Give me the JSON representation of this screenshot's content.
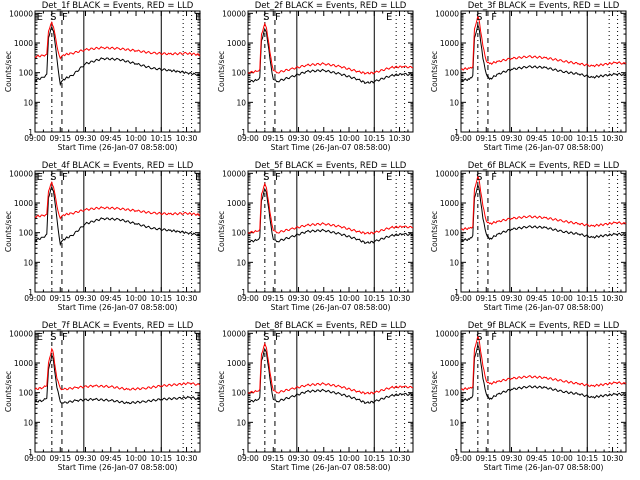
{
  "colors": {
    "events": "#000000",
    "lld": "#ff0000",
    "axis": "#000000",
    "background": "#ffffff"
  },
  "chart_data": [
    {
      "type": "line",
      "title": "Det_1f  BLACK = Events, RED = LLD",
      "ylabel": "Counts/sec",
      "xlabel": "Start Time (26-Jan-07 08:58:00)",
      "profile": 0,
      "markers": [
        {
          "label": "E",
          "x": "09:01"
        },
        {
          "label": "S",
          "x": "09:09"
        },
        {
          "label": "F",
          "x": "09:16"
        },
        {
          "label": "E",
          "x": "10:35"
        }
      ]
    },
    {
      "type": "line",
      "title": "Det_2f  BLACK = Events, RED = LLD",
      "ylabel": "Counts/sec",
      "xlabel": "Start Time (26-Jan-07 08:58:00)",
      "profile": 1,
      "markers": [
        {
          "label": "S",
          "x": "09:09"
        },
        {
          "label": "F",
          "x": "09:16"
        },
        {
          "label": "E",
          "x": "10:22"
        }
      ]
    },
    {
      "type": "line",
      "title": "Det_3f  BLACK = Events, RED = LLD",
      "ylabel": "Counts/sec",
      "xlabel": "Start Time (26-Jan-07 08:58:00)",
      "profile": 2,
      "markers": [
        {
          "label": "S",
          "x": "09:09"
        },
        {
          "label": "F",
          "x": "09:18"
        }
      ]
    },
    {
      "type": "line",
      "title": "Det_4f  BLACK = Events, RED = LLD",
      "ylabel": "Counts/sec",
      "xlabel": "Start Time (26-Jan-07 08:58:00)",
      "profile": 0,
      "markers": [
        {
          "label": "E",
          "x": "09:01"
        },
        {
          "label": "S",
          "x": "09:09"
        },
        {
          "label": "F",
          "x": "09:16"
        },
        {
          "label": "E",
          "x": "10:35"
        }
      ]
    },
    {
      "type": "line",
      "title": "Det_5f  BLACK = Events, RED = LLD",
      "ylabel": "Counts/sec",
      "xlabel": "Start Time (26-Jan-07 08:58:00)",
      "profile": 1,
      "markers": [
        {
          "label": "S",
          "x": "09:09"
        },
        {
          "label": "F",
          "x": "09:16"
        },
        {
          "label": "E",
          "x": "10:22"
        }
      ]
    },
    {
      "type": "line",
      "title": "Det_6f  BLACK = Events, RED = LLD",
      "ylabel": "Counts/sec",
      "xlabel": "Start Time (26-Jan-07 08:58:00)",
      "profile": 2,
      "markers": [
        {
          "label": "S",
          "x": "09:09"
        },
        {
          "label": "F",
          "x": "09:18"
        }
      ]
    },
    {
      "type": "line",
      "title": "Det_7f  BLACK = Events, RED = LLD",
      "ylabel": "Counts/sec",
      "xlabel": "Start Time (26-Jan-07 08:58:00)",
      "profile": 3,
      "markers": [
        {
          "label": "E",
          "x": "09:01"
        },
        {
          "label": "S",
          "x": "09:09"
        },
        {
          "label": "F",
          "x": "09:16"
        },
        {
          "label": "E",
          "x": "10:35"
        }
      ]
    },
    {
      "type": "line",
      "title": "Det_8f  BLACK = Events, RED = LLD",
      "ylabel": "Counts/sec",
      "xlabel": "Start Time (26-Jan-07 08:58:00)",
      "profile": 1,
      "markers": [
        {
          "label": "S",
          "x": "09:09"
        },
        {
          "label": "F",
          "x": "09:16"
        },
        {
          "label": "E",
          "x": "10:22"
        }
      ]
    },
    {
      "type": "line",
      "title": "Det_9f  BLACK = Events, RED = LLD",
      "ylabel": "Counts/sec",
      "xlabel": "Start Time (26-Jan-07 08:58:00)",
      "profile": 2,
      "markers": [
        {
          "label": "S",
          "x": "09:09"
        },
        {
          "label": "F",
          "x": "09:18"
        }
      ]
    }
  ],
  "axes": {
    "x_ticks": [
      "09:00",
      "09:15",
      "09:30",
      "09:45",
      "10:00",
      "10:15",
      "10:30"
    ],
    "x_range": [
      "09:00",
      "10:38"
    ],
    "y_ticks": [
      "1",
      "10",
      "100",
      "1000",
      "10000"
    ],
    "y_range": [
      1,
      12000
    ],
    "y_scale": "log"
  },
  "profiles": [
    {
      "events": [
        [
          0,
          55
        ],
        [
          5,
          70
        ],
        [
          7,
          90
        ],
        [
          8,
          1500
        ],
        [
          10,
          3500
        ],
        [
          11,
          2500
        ],
        [
          13,
          300
        ],
        [
          15,
          40
        ],
        [
          17,
          60
        ],
        [
          22,
          80
        ],
        [
          30,
          200
        ],
        [
          40,
          300
        ],
        [
          50,
          280
        ],
        [
          60,
          200
        ],
        [
          70,
          140
        ],
        [
          80,
          120
        ],
        [
          85,
          110
        ],
        [
          90,
          100
        ],
        [
          95,
          90
        ],
        [
          98,
          80
        ]
      ],
      "lld": [
        [
          0,
          350
        ],
        [
          5,
          380
        ],
        [
          7,
          420
        ],
        [
          8,
          2500
        ],
        [
          10,
          5000
        ],
        [
          11,
          3500
        ],
        [
          13,
          800
        ],
        [
          15,
          300
        ],
        [
          17,
          400
        ],
        [
          22,
          450
        ],
        [
          30,
          600
        ],
        [
          40,
          700
        ],
        [
          50,
          650
        ],
        [
          60,
          550
        ],
        [
          70,
          460
        ],
        [
          80,
          430
        ],
        [
          90,
          450
        ],
        [
          95,
          420
        ],
        [
          98,
          400
        ]
      ]
    },
    {
      "events": [
        [
          0,
          50
        ],
        [
          5,
          55
        ],
        [
          7,
          70
        ],
        [
          8,
          1200
        ],
        [
          10,
          3000
        ],
        [
          11,
          2200
        ],
        [
          13,
          300
        ],
        [
          15,
          60
        ],
        [
          17,
          50
        ],
        [
          25,
          70
        ],
        [
          35,
          110
        ],
        [
          45,
          120
        ],
        [
          55,
          90
        ],
        [
          65,
          60
        ],
        [
          70,
          45
        ],
        [
          75,
          50
        ],
        [
          85,
          80
        ],
        [
          92,
          90
        ],
        [
          98,
          85
        ]
      ],
      "lld": [
        [
          0,
          100
        ],
        [
          5,
          110
        ],
        [
          7,
          130
        ],
        [
          8,
          2000
        ],
        [
          10,
          4500
        ],
        [
          11,
          3200
        ],
        [
          13,
          500
        ],
        [
          15,
          120
        ],
        [
          17,
          100
        ],
        [
          25,
          130
        ],
        [
          35,
          180
        ],
        [
          45,
          200
        ],
        [
          55,
          160
        ],
        [
          65,
          110
        ],
        [
          70,
          95
        ],
        [
          75,
          100
        ],
        [
          85,
          150
        ],
        [
          92,
          160
        ],
        [
          98,
          150
        ]
      ]
    },
    {
      "events": [
        [
          0,
          55
        ],
        [
          5,
          60
        ],
        [
          7,
          80
        ],
        [
          8,
          1500
        ],
        [
          10,
          4000
        ],
        [
          11,
          2500
        ],
        [
          13,
          300
        ],
        [
          15,
          90
        ],
        [
          17,
          60
        ],
        [
          22,
          90
        ],
        [
          30,
          130
        ],
        [
          40,
          160
        ],
        [
          50,
          150
        ],
        [
          60,
          110
        ],
        [
          70,
          90
        ],
        [
          78,
          70
        ],
        [
          85,
          80
        ],
        [
          92,
          90
        ],
        [
          98,
          85
        ]
      ],
      "lld": [
        [
          0,
          130
        ],
        [
          5,
          140
        ],
        [
          7,
          160
        ],
        [
          8,
          3000
        ],
        [
          10,
          8000
        ],
        [
          11,
          5000
        ],
        [
          13,
          800
        ],
        [
          15,
          250
        ],
        [
          17,
          200
        ],
        [
          22,
          240
        ],
        [
          30,
          300
        ],
        [
          40,
          350
        ],
        [
          50,
          320
        ],
        [
          60,
          250
        ],
        [
          70,
          200
        ],
        [
          78,
          170
        ],
        [
          85,
          190
        ],
        [
          92,
          220
        ],
        [
          98,
          200
        ]
      ]
    },
    {
      "events": [
        [
          0,
          50
        ],
        [
          5,
          55
        ],
        [
          7,
          65
        ],
        [
          8,
          600
        ],
        [
          10,
          1800
        ],
        [
          11,
          1200
        ],
        [
          13,
          150
        ],
        [
          15,
          50
        ],
        [
          17,
          45
        ],
        [
          25,
          55
        ],
        [
          35,
          60
        ],
        [
          45,
          55
        ],
        [
          55,
          45
        ],
        [
          65,
          50
        ],
        [
          75,
          60
        ],
        [
          85,
          65
        ],
        [
          92,
          70
        ],
        [
          98,
          60
        ]
      ],
      "lld": [
        [
          0,
          130
        ],
        [
          5,
          150
        ],
        [
          7,
          170
        ],
        [
          8,
          1000
        ],
        [
          10,
          3000
        ],
        [
          11,
          2000
        ],
        [
          13,
          300
        ],
        [
          15,
          140
        ],
        [
          17,
          130
        ],
        [
          25,
          150
        ],
        [
          35,
          170
        ],
        [
          45,
          160
        ],
        [
          55,
          130
        ],
        [
          65,
          140
        ],
        [
          75,
          170
        ],
        [
          85,
          190
        ],
        [
          92,
          210
        ],
        [
          98,
          180
        ]
      ]
    }
  ]
}
